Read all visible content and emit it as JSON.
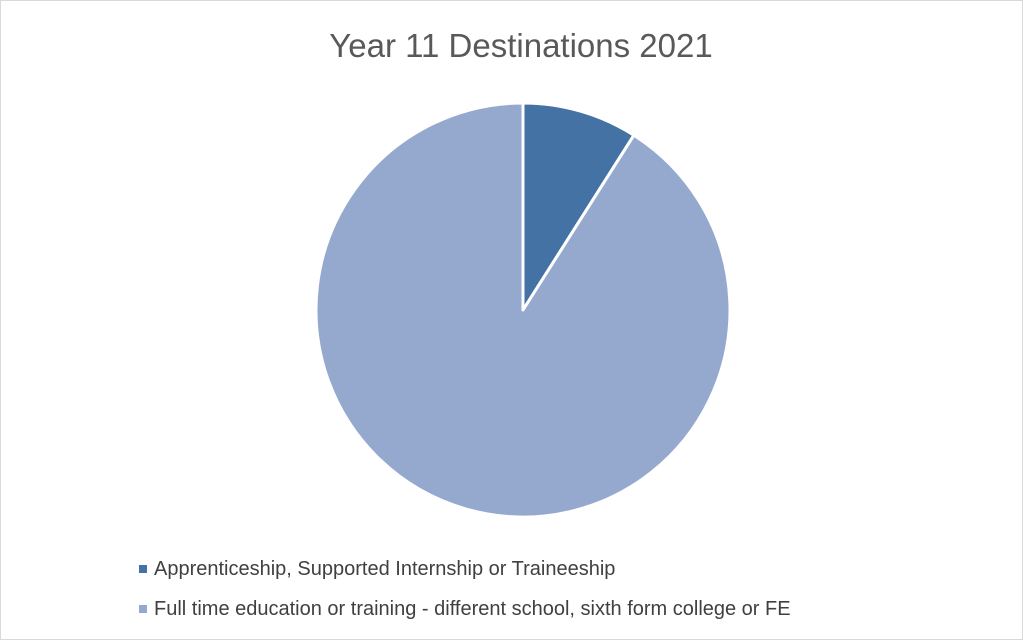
{
  "chart_data": {
    "type": "pie",
    "title": "Year 11 Destinations 2021",
    "slices": [
      {
        "label": "Apprenticeship, Supported Internship or Traineeship",
        "value": 9,
        "color": "#4472a4"
      },
      {
        "label": "Full time education or training - different school, sixth form college or FE",
        "value": 91,
        "color": "#95a9cf"
      }
    ],
    "legend_position": "bottom"
  }
}
